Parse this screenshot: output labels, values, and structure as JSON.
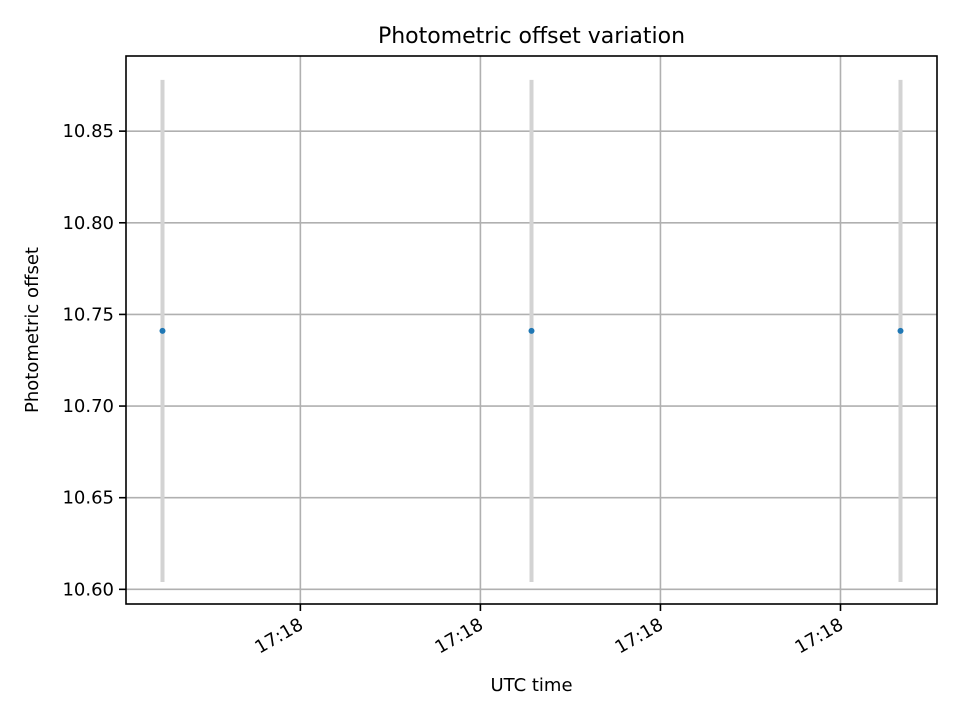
{
  "chart_data": {
    "type": "scatter",
    "title": "Photometric offset variation",
    "xlabel": "UTC time",
    "ylabel": "Photometric offset",
    "x_tick_labels": [
      "17:18",
      "17:18",
      "17:18",
      "17:18"
    ],
    "y_ticks": [
      10.6,
      10.65,
      10.7,
      10.75,
      10.8,
      10.85
    ],
    "y_tick_labels": [
      "10.60",
      "10.65",
      "10.70",
      "10.75",
      "10.80",
      "10.85"
    ],
    "ylim": [
      10.592,
      10.891
    ],
    "grid": true,
    "series": [
      {
        "points": [
          {
            "x_frac": 0.045,
            "y": 10.741,
            "yerr": 0.137
          },
          {
            "x_frac": 0.5,
            "y": 10.741,
            "yerr": 0.137
          },
          {
            "x_frac": 0.955,
            "y": 10.741,
            "yerr": 0.137
          }
        ],
        "marker_color": "#1f77b4",
        "errorbar_color": "#d3d3d3"
      }
    ]
  }
}
